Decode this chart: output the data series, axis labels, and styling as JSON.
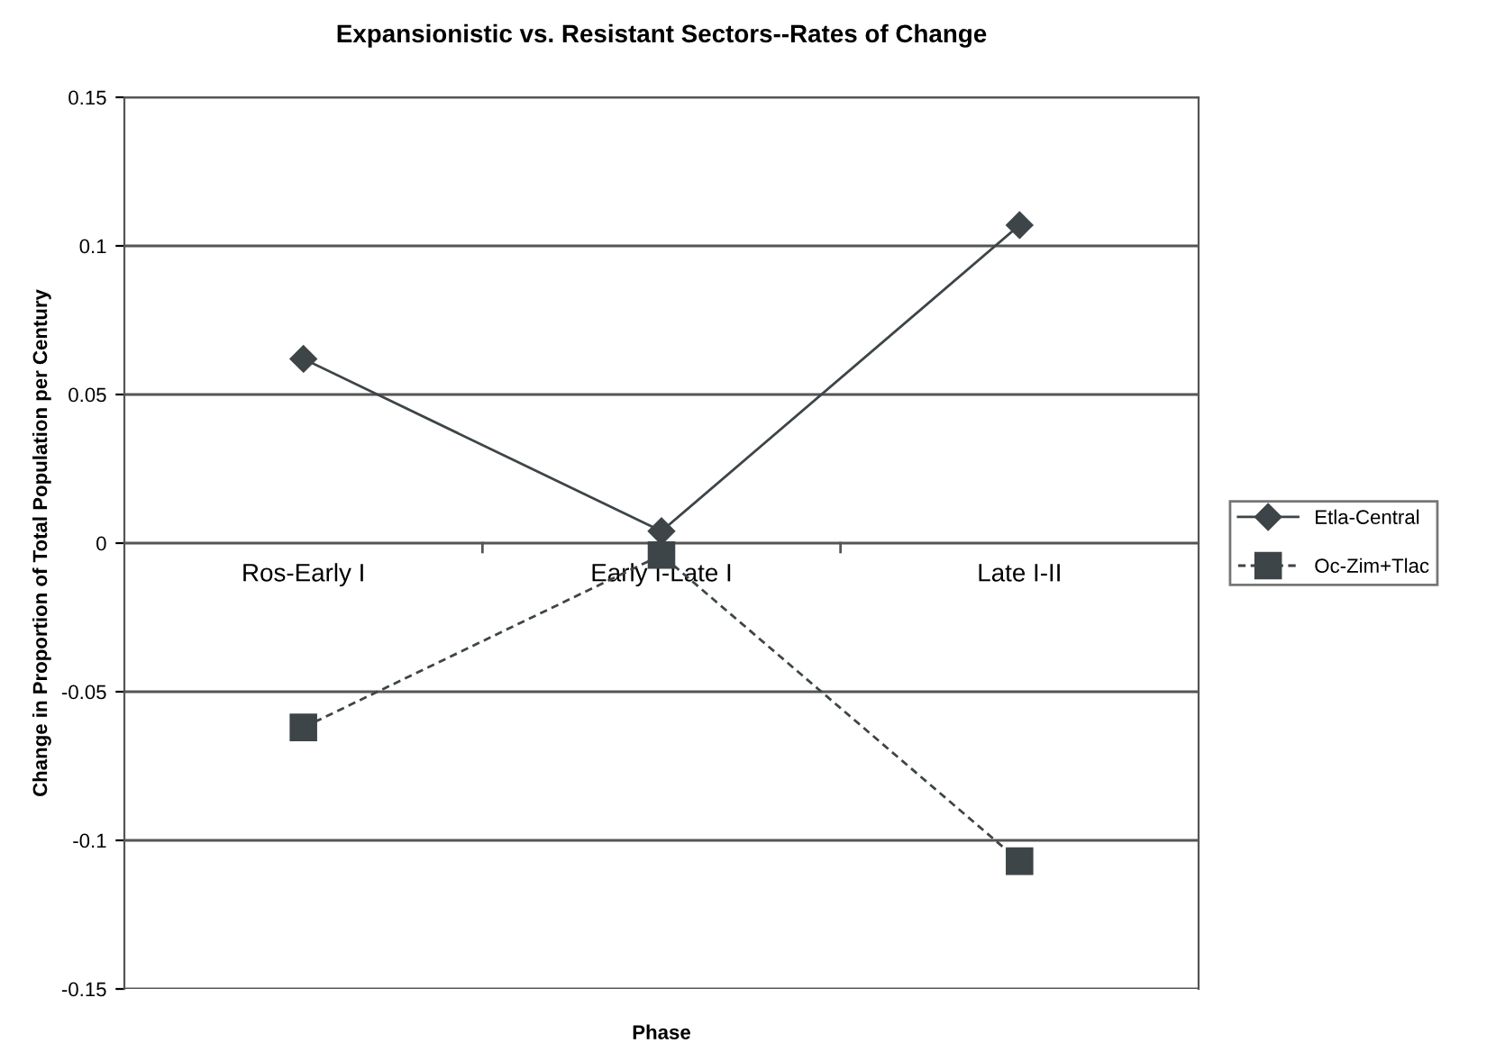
{
  "chart_data": {
    "type": "line",
    "title": "Expansionistic vs. Resistant Sectors--Rates of Change",
    "xlabel": "Phase",
    "ylabel": "Change in Proportion of Total Population per Century",
    "categories": [
      "Ros-Early I",
      "Early I-Late I",
      "Late I-II"
    ],
    "series": [
      {
        "name": "Etla-Central",
        "color": "#3d4548",
        "values": [
          0.062,
          0.004,
          0.107
        ],
        "marker": "diamond",
        "line_style": "solid"
      },
      {
        "name": "Oc-Zim+Tlac",
        "color": "#3d4548",
        "values": [
          -0.062,
          -0.004,
          -0.107
        ],
        "marker": "square",
        "line_style": "dashed"
      }
    ],
    "ylim": [
      -0.15,
      0.15
    ],
    "yticks": [
      -0.15,
      -0.1,
      -0.05,
      0,
      0.05,
      0.1,
      0.15
    ],
    "grid": "y",
    "legend": "right"
  }
}
